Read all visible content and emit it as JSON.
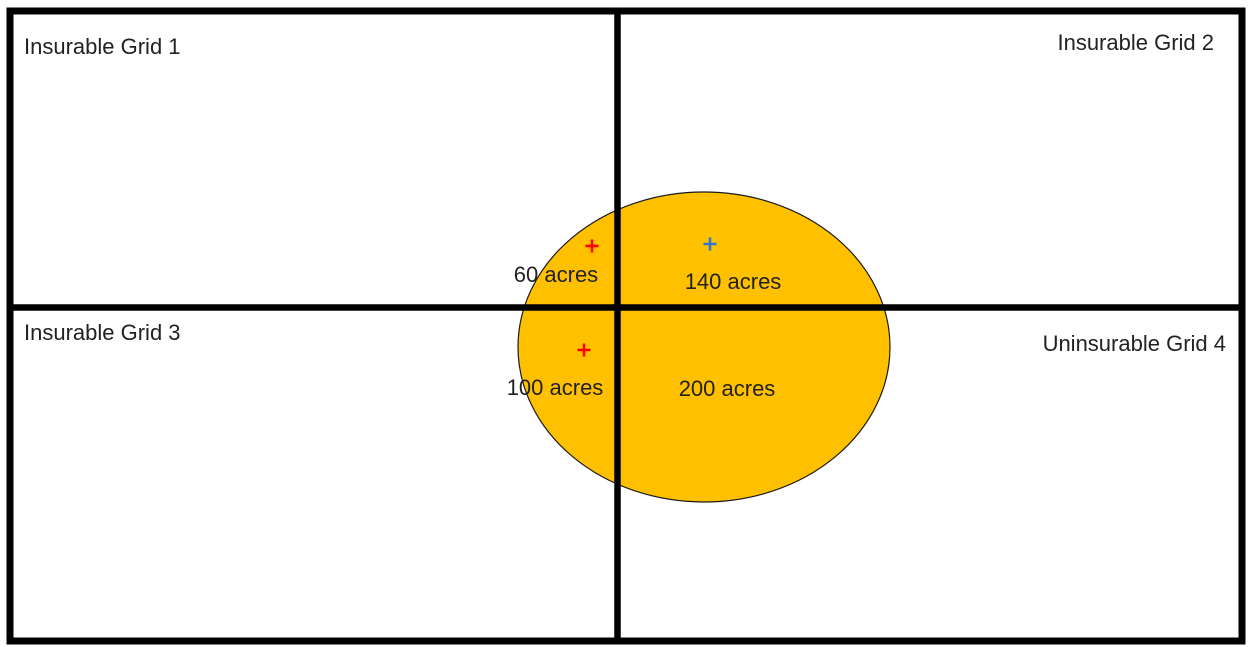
{
  "colors": {
    "grid_line": "#000000",
    "background": "#ffffff",
    "area_fill": "#FFC000",
    "area_stroke": "#1a1a1a",
    "marker_red": "#FF0000",
    "marker_blue": "#2E75D6",
    "text": "#222222"
  },
  "grids": [
    {
      "label": "Insurable Grid 1"
    },
    {
      "label": "Insurable Grid 2"
    },
    {
      "label": "Insurable Grid 3"
    },
    {
      "label": "Uninsurable Grid 4"
    }
  ],
  "area_parts": [
    {
      "label": "60 acres",
      "grid": 1,
      "marker_color": "red"
    },
    {
      "label": "140 acres",
      "grid": 2,
      "marker_color": "blue"
    },
    {
      "label": "100 acres",
      "grid": 3,
      "marker_color": "red"
    },
    {
      "label": "200 acres",
      "grid": 4
    }
  ]
}
